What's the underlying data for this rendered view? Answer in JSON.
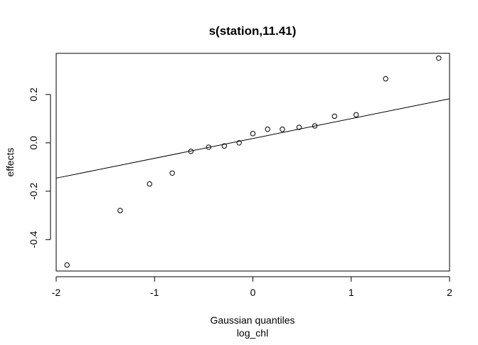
{
  "chart_data": {
    "type": "scatter",
    "title": "s(station,11.41)",
    "xlabel": "Gaussian quantiles",
    "xlabel_sub": "log_chl",
    "ylabel": "effects",
    "xlim": [
      -2.0,
      2.0
    ],
    "ylim": [
      -0.53,
      0.37
    ],
    "x_ticks": [
      -2,
      -1,
      0,
      1,
      2
    ],
    "x_tick_labels": [
      "-2",
      "-1",
      "0",
      "1",
      "2"
    ],
    "y_ticks": [
      -0.4,
      -0.2,
      0.0,
      0.2
    ],
    "y_tick_labels": [
      "-0.4",
      "-0.2",
      "0.0",
      "0.2"
    ],
    "grid": false,
    "series": [
      {
        "points": [
          {
            "x": -1.89,
            "y": -0.505
          },
          {
            "x": -1.35,
            "y": -0.28
          },
          {
            "x": -1.05,
            "y": -0.17
          },
          {
            "x": -0.82,
            "y": -0.125
          },
          {
            "x": -0.63,
            "y": -0.035
          },
          {
            "x": -0.45,
            "y": -0.018
          },
          {
            "x": -0.29,
            "y": -0.013
          },
          {
            "x": -0.14,
            "y": 0.0
          },
          {
            "x": 0.0,
            "y": 0.038
          },
          {
            "x": 0.15,
            "y": 0.056
          },
          {
            "x": 0.3,
            "y": 0.056
          },
          {
            "x": 0.47,
            "y": 0.064
          },
          {
            "x": 0.63,
            "y": 0.07
          },
          {
            "x": 0.83,
            "y": 0.11
          },
          {
            "x": 1.05,
            "y": 0.116
          },
          {
            "x": 1.35,
            "y": 0.265
          },
          {
            "x": 1.89,
            "y": 0.35
          }
        ]
      }
    ],
    "reference_line": {
      "intercept": 0.018,
      "slope": 0.082
    }
  }
}
